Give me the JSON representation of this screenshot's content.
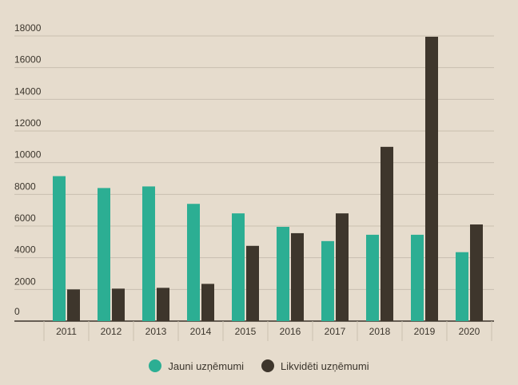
{
  "colors": {
    "background": "#e6dccd",
    "grid": "#c9bfb0",
    "axis": "#3b352c",
    "text": "#3b352c"
  },
  "chart_data": {
    "type": "bar",
    "categories": [
      "2011",
      "2012",
      "2013",
      "2014",
      "2015",
      "2016",
      "2017",
      "2018",
      "2019",
      "2020"
    ],
    "series": [
      {
        "name": "Jauni uzņēmumi",
        "color": "#2cae93",
        "values": [
          9150,
          8400,
          8500,
          7400,
          6800,
          5950,
          5050,
          5450,
          5450,
          4350
        ]
      },
      {
        "name": "Likvidēti uzņēmumi",
        "color": "#3e362c",
        "values": [
          2000,
          2050,
          2100,
          2350,
          4750,
          5550,
          6800,
          11000,
          17950,
          6100
        ]
      }
    ],
    "yticks": [
      0,
      2000,
      4000,
      6000,
      8000,
      10000,
      12000,
      14000,
      16000,
      18000
    ],
    "ylim": [
      0,
      18000
    ],
    "grid": true,
    "legend_position": "bottom-center"
  }
}
